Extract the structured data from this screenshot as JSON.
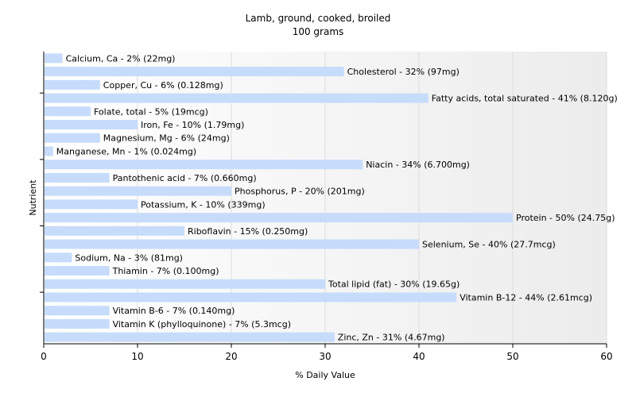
{
  "chart_data": {
    "type": "bar",
    "orientation": "horizontal",
    "title": "Lamb, ground, cooked, broiled",
    "subtitle": "100 grams",
    "xlabel": "% Daily Value",
    "ylabel": "Nutrient",
    "xlim": [
      0,
      60
    ],
    "xticks": [
      0,
      10,
      20,
      30,
      40,
      50,
      60
    ],
    "grid": true,
    "bar_color": "#c6dcfa",
    "categories": [
      "Calcium, Ca",
      "Cholesterol",
      "Copper, Cu",
      "Fatty acids, total saturated",
      "Folate, total",
      "Iron, Fe",
      "Magnesium, Mg",
      "Manganese, Mn",
      "Niacin",
      "Pantothenic acid",
      "Phosphorus, P",
      "Potassium, K",
      "Protein",
      "Riboflavin",
      "Selenium, Se",
      "Sodium, Na",
      "Thiamin",
      "Total lipid (fat)",
      "Vitamin B-12",
      "Vitamin B-6",
      "Vitamin K (phylloquinone)",
      "Zinc, Zn"
    ],
    "values": [
      2,
      32,
      6,
      41,
      5,
      10,
      6,
      1,
      34,
      7,
      20,
      10,
      50,
      15,
      40,
      3,
      7,
      30,
      44,
      7,
      7,
      31
    ],
    "labels": [
      "Calcium, Ca - 2% (22mg)",
      "Cholesterol - 32% (97mg)",
      "Copper, Cu - 6% (0.128mg)",
      "Fatty acids, total saturated - 41% (8.120g)",
      "Folate, total - 5% (19mcg)",
      "Iron, Fe - 10% (1.79mg)",
      "Magnesium, Mg - 6% (24mg)",
      "Manganese, Mn - 1% (0.024mg)",
      "Niacin - 34% (6.700mg)",
      "Pantothenic acid - 7% (0.660mg)",
      "Phosphorus, P - 20% (201mg)",
      "Potassium, K - 10% (339mg)",
      "Protein - 50% (24.75g)",
      "Riboflavin - 15% (0.250mg)",
      "Selenium, Se - 40% (27.7mcg)",
      "Sodium, Na - 3% (81mg)",
      "Thiamin - 7% (0.100mg)",
      "Total lipid (fat) - 30% (19.65g)",
      "Vitamin B-12 - 44% (2.61mcg)",
      "Vitamin B-6 - 7% (0.140mg)",
      "Vitamin K (phylloquinone) - 7% (5.3mcg)",
      "Zinc, Zn - 31% (4.67mg)"
    ]
  }
}
